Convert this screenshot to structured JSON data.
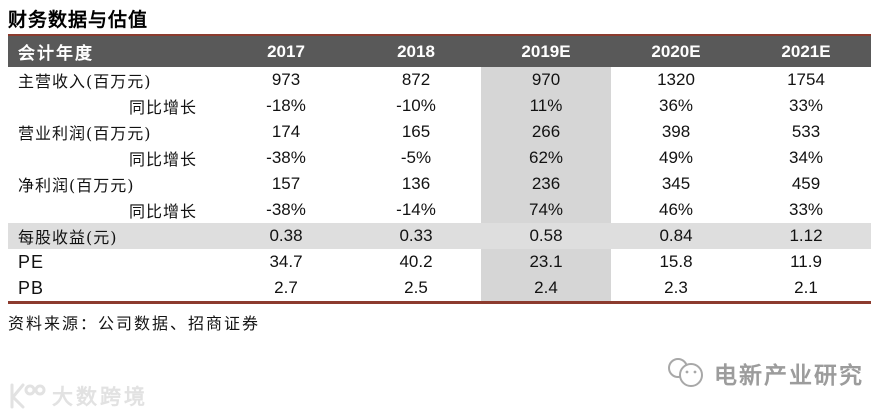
{
  "page_title": "财务数据与估值",
  "table": {
    "columns": [
      "会计年度",
      "2017",
      "2018",
      "2019E",
      "2020E",
      "2021E"
    ],
    "highlight_column": "2019E",
    "highlight_row": "每股收益(元)",
    "rows": [
      {
        "label": "主营收入(百万元)",
        "align": "left",
        "shaded": false,
        "values": [
          "973",
          "872",
          "970",
          "1320",
          "1754"
        ]
      },
      {
        "label": "同比增长",
        "align": "right",
        "shaded": false,
        "values": [
          "-18%",
          "-10%",
          "11%",
          "36%",
          "33%"
        ]
      },
      {
        "label": "营业利润(百万元)",
        "align": "left",
        "shaded": false,
        "values": [
          "174",
          "165",
          "266",
          "398",
          "533"
        ]
      },
      {
        "label": "同比增长",
        "align": "right",
        "shaded": false,
        "values": [
          "-38%",
          "-5%",
          "62%",
          "49%",
          "34%"
        ]
      },
      {
        "label": "净利润(百万元)",
        "align": "left",
        "shaded": false,
        "values": [
          "157",
          "136",
          "236",
          "345",
          "459"
        ]
      },
      {
        "label": "同比增长",
        "align": "right",
        "shaded": false,
        "values": [
          "-38%",
          "-14%",
          "74%",
          "46%",
          "33%"
        ]
      },
      {
        "label": "每股收益(元)",
        "align": "left",
        "shaded": true,
        "values": [
          "0.38",
          "0.33",
          "0.58",
          "0.84",
          "1.12"
        ]
      },
      {
        "label": "PE",
        "align": "left",
        "shaded": false,
        "values": [
          "34.7",
          "40.2",
          "23.1",
          "15.8",
          "11.9"
        ]
      },
      {
        "label": "PB",
        "align": "left",
        "shaded": false,
        "values": [
          "2.7",
          "2.5",
          "2.4",
          "2.3",
          "2.1"
        ]
      }
    ]
  },
  "source_note": "资料来源：公司数据、招商证券",
  "watermarks": {
    "bottom_left": "大数跨境",
    "bottom_right": "电新产业研究"
  },
  "colors": {
    "accent_border": "#8c3b2e",
    "header_bg": "#595959",
    "header_text": "#ffffff",
    "column_highlight": "#d6d6d6",
    "row_highlight": "#dedede"
  }
}
